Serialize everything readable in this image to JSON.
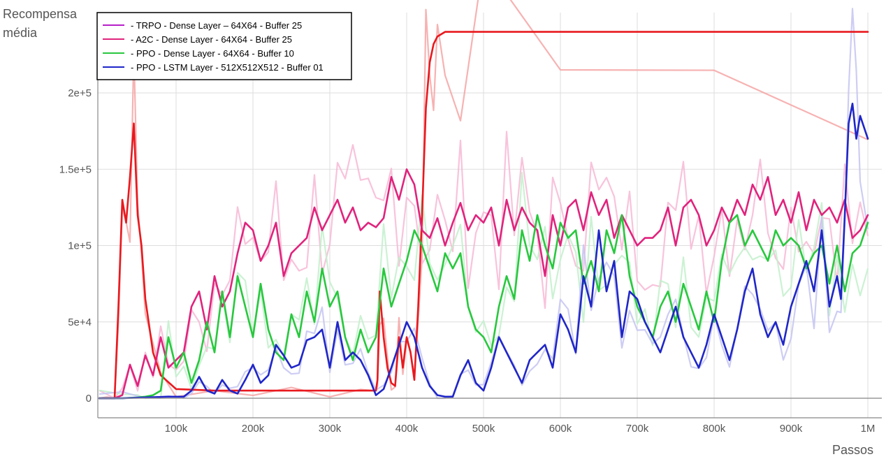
{
  "chart_data": {
    "type": "line",
    "ylabel_lines": [
      "Recompensa",
      "média"
    ],
    "xlabel": "Passos",
    "xlim": [
      0,
      1000000
    ],
    "ylim": [
      -13000,
      255000
    ],
    "grid": true,
    "legend_position": "top-left",
    "x_ticks": [
      {
        "value": 100000,
        "label": "100k"
      },
      {
        "value": 200000,
        "label": "200k"
      },
      {
        "value": 300000,
        "label": "300k"
      },
      {
        "value": 400000,
        "label": "400k"
      },
      {
        "value": 500000,
        "label": "500k"
      },
      {
        "value": 600000,
        "label": "600k"
      },
      {
        "value": 700000,
        "label": "700k"
      },
      {
        "value": 800000,
        "label": "800k"
      },
      {
        "value": 900000,
        "label": "900k"
      },
      {
        "value": 1000000,
        "label": "1M"
      }
    ],
    "y_ticks": [
      {
        "value": 0,
        "label": "0"
      },
      {
        "value": 50000,
        "label": "5e+4"
      },
      {
        "value": 100000,
        "label": "1e+5"
      },
      {
        "value": 150000,
        "label": "1.5e+5"
      },
      {
        "value": 200000,
        "label": "2e+5"
      }
    ],
    "series": [
      {
        "name": "- TRPO - Dense Layer – 64X64 -  Buffer 25",
        "color": "#e8191e",
        "legend_color": "#b520c8",
        "raw_color": "#f6a5a5",
        "x": [
          0,
          10000,
          20000,
          25000,
          30000,
          35000,
          40000,
          45000,
          50000,
          55000,
          60000,
          70000,
          80000,
          100000,
          150000,
          200000,
          250000,
          300000,
          340000,
          360000,
          362000,
          365000,
          370000,
          375000,
          380000,
          385000,
          390000,
          395000,
          400000,
          405000,
          410000,
          415000,
          420000,
          425000,
          430000,
          435000,
          440000,
          450000,
          470000,
          500000,
          600000,
          800000,
          1000000
        ],
        "y": [
          0,
          0,
          0,
          60000,
          130000,
          115000,
          145000,
          180000,
          120000,
          100000,
          65000,
          30000,
          15000,
          6000,
          5000,
          5000,
          5000,
          5000,
          5000,
          5000,
          12000,
          70000,
          40000,
          20000,
          10000,
          8000,
          40000,
          20000,
          40000,
          30000,
          12000,
          60000,
          120000,
          190000,
          220000,
          232000,
          237000,
          240000,
          240000,
          240000,
          240000,
          240000,
          240000
        ]
      },
      {
        "name": "- A2C - Dense Layer - 64X64 -  Buffer 25",
        "color": "#e0237d",
        "legend_color": "#e0237d",
        "raw_color": "#f7b9d5",
        "x": [
          0,
          20000,
          30000,
          40000,
          50000,
          60000,
          70000,
          80000,
          90000,
          100000,
          110000,
          120000,
          130000,
          140000,
          150000,
          160000,
          170000,
          180000,
          190000,
          200000,
          210000,
          220000,
          230000,
          240000,
          250000,
          260000,
          270000,
          280000,
          290000,
          300000,
          310000,
          320000,
          330000,
          340000,
          350000,
          360000,
          370000,
          380000,
          390000,
          400000,
          410000,
          420000,
          430000,
          440000,
          450000,
          460000,
          470000,
          480000,
          490000,
          500000,
          510000,
          520000,
          530000,
          540000,
          550000,
          560000,
          570000,
          580000,
          590000,
          600000,
          610000,
          620000,
          630000,
          640000,
          650000,
          660000,
          670000,
          680000,
          690000,
          700000,
          710000,
          720000,
          730000,
          740000,
          750000,
          760000,
          770000,
          780000,
          790000,
          800000,
          810000,
          820000,
          830000,
          840000,
          850000,
          860000,
          870000,
          880000,
          890000,
          900000,
          910000,
          920000,
          930000,
          940000,
          950000,
          960000,
          970000,
          980000,
          990000,
          1000000
        ],
        "y": [
          0,
          0,
          2000,
          22000,
          8000,
          28000,
          15000,
          40000,
          20000,
          25000,
          30000,
          60000,
          70000,
          45000,
          80000,
          60000,
          70000,
          95000,
          115000,
          110000,
          90000,
          100000,
          115000,
          80000,
          95000,
          100000,
          105000,
          125000,
          110000,
          120000,
          130000,
          115000,
          125000,
          110000,
          115000,
          112000,
          118000,
          145000,
          130000,
          150000,
          140000,
          110000,
          105000,
          118000,
          100000,
          115000,
          128000,
          110000,
          120000,
          115000,
          125000,
          100000,
          130000,
          110000,
          125000,
          115000,
          110000,
          80000,
          120000,
          100000,
          125000,
          130000,
          110000,
          135000,
          120000,
          130000,
          105000,
          120000,
          110000,
          100000,
          105000,
          105000,
          110000,
          125000,
          100000,
          125000,
          130000,
          120000,
          100000,
          110000,
          125000,
          115000,
          130000,
          120000,
          140000,
          130000,
          145000,
          120000,
          130000,
          115000,
          135000,
          110000,
          130000,
          120000,
          125000,
          115000,
          130000,
          105000,
          110000,
          120000
        ]
      },
      {
        "name": "- PPO - Dense Layer - 64X64 -  Buffer 10",
        "color": "#28c83e",
        "legend_color": "#28c83e",
        "raw_color": "#c2f0cb",
        "x": [
          0,
          30000,
          50000,
          60000,
          70000,
          80000,
          90000,
          100000,
          110000,
          120000,
          130000,
          140000,
          150000,
          160000,
          170000,
          180000,
          190000,
          200000,
          210000,
          220000,
          230000,
          240000,
          250000,
          260000,
          270000,
          280000,
          290000,
          300000,
          310000,
          320000,
          330000,
          340000,
          350000,
          360000,
          370000,
          380000,
          390000,
          400000,
          410000,
          420000,
          430000,
          440000,
          450000,
          460000,
          470000,
          480000,
          490000,
          500000,
          510000,
          520000,
          530000,
          540000,
          550000,
          560000,
          570000,
          580000,
          590000,
          600000,
          610000,
          620000,
          630000,
          640000,
          650000,
          660000,
          670000,
          680000,
          690000,
          700000,
          710000,
          720000,
          730000,
          740000,
          750000,
          760000,
          770000,
          780000,
          790000,
          800000,
          810000,
          820000,
          830000,
          840000,
          850000,
          860000,
          870000,
          880000,
          890000,
          900000,
          910000,
          920000,
          930000,
          940000,
          950000,
          960000,
          970000,
          980000,
          990000,
          1000000
        ],
        "y": [
          0,
          0,
          500,
          1000,
          2000,
          5000,
          40000,
          20000,
          30000,
          10000,
          25000,
          50000,
          30000,
          70000,
          40000,
          80000,
          60000,
          40000,
          75000,
          45000,
          30000,
          25000,
          55000,
          40000,
          70000,
          50000,
          85000,
          60000,
          70000,
          40000,
          25000,
          45000,
          30000,
          40000,
          85000,
          60000,
          75000,
          90000,
          110000,
          100000,
          85000,
          70000,
          95000,
          85000,
          95000,
          60000,
          45000,
          40000,
          30000,
          60000,
          80000,
          65000,
          110000,
          90000,
          120000,
          100000,
          85000,
          115000,
          105000,
          110000,
          75000,
          90000,
          70000,
          110000,
          95000,
          120000,
          80000,
          60000,
          50000,
          40000,
          60000,
          70000,
          50000,
          75000,
          60000,
          45000,
          70000,
          50000,
          90000,
          115000,
          120000,
          100000,
          110000,
          100000,
          90000,
          110000,
          100000,
          105000,
          100000,
          85000,
          95000,
          100000,
          75000,
          100000,
          70000,
          95000,
          100000,
          115000
        ]
      },
      {
        "name": "- PPO - LSTM Layer - 512X512X512 -  Buffer 01",
        "color": "#1f26c8",
        "legend_color": "#1f26c8",
        "raw_color": "#c4c4f2",
        "x": [
          0,
          30000,
          60000,
          90000,
          110000,
          120000,
          130000,
          140000,
          150000,
          160000,
          170000,
          180000,
          190000,
          200000,
          210000,
          220000,
          230000,
          240000,
          250000,
          260000,
          270000,
          280000,
          290000,
          300000,
          310000,
          320000,
          330000,
          340000,
          350000,
          360000,
          370000,
          380000,
          390000,
          400000,
          410000,
          420000,
          430000,
          440000,
          450000,
          460000,
          470000,
          480000,
          490000,
          500000,
          510000,
          520000,
          530000,
          540000,
          550000,
          560000,
          570000,
          580000,
          590000,
          600000,
          610000,
          620000,
          630000,
          640000,
          650000,
          660000,
          670000,
          680000,
          690000,
          700000,
          710000,
          720000,
          730000,
          740000,
          750000,
          760000,
          770000,
          780000,
          790000,
          800000,
          810000,
          820000,
          830000,
          840000,
          850000,
          860000,
          870000,
          880000,
          890000,
          900000,
          910000,
          920000,
          930000,
          940000,
          950000,
          960000,
          965000,
          970000,
          975000,
          980000,
          985000,
          990000,
          1000000
        ],
        "y": [
          0,
          0,
          500,
          1000,
          1000,
          5000,
          14000,
          5000,
          3000,
          12000,
          5000,
          3000,
          12000,
          22000,
          10000,
          15000,
          35000,
          28000,
          20000,
          22000,
          38000,
          40000,
          45000,
          20000,
          50000,
          25000,
          30000,
          25000,
          15000,
          2000,
          6000,
          20000,
          35000,
          50000,
          40000,
          20000,
          8000,
          2000,
          1000,
          1000,
          15000,
          25000,
          10000,
          5000,
          20000,
          40000,
          30000,
          20000,
          10000,
          25000,
          30000,
          35000,
          20000,
          55000,
          45000,
          30000,
          80000,
          60000,
          110000,
          70000,
          90000,
          40000,
          70000,
          65000,
          50000,
          40000,
          30000,
          45000,
          60000,
          40000,
          30000,
          20000,
          35000,
          55000,
          40000,
          25000,
          45000,
          70000,
          85000,
          55000,
          40000,
          50000,
          35000,
          60000,
          75000,
          90000,
          70000,
          110000,
          60000,
          80000,
          65000,
          120000,
          180000,
          193000,
          170000,
          185000,
          170000
        ]
      }
    ]
  }
}
